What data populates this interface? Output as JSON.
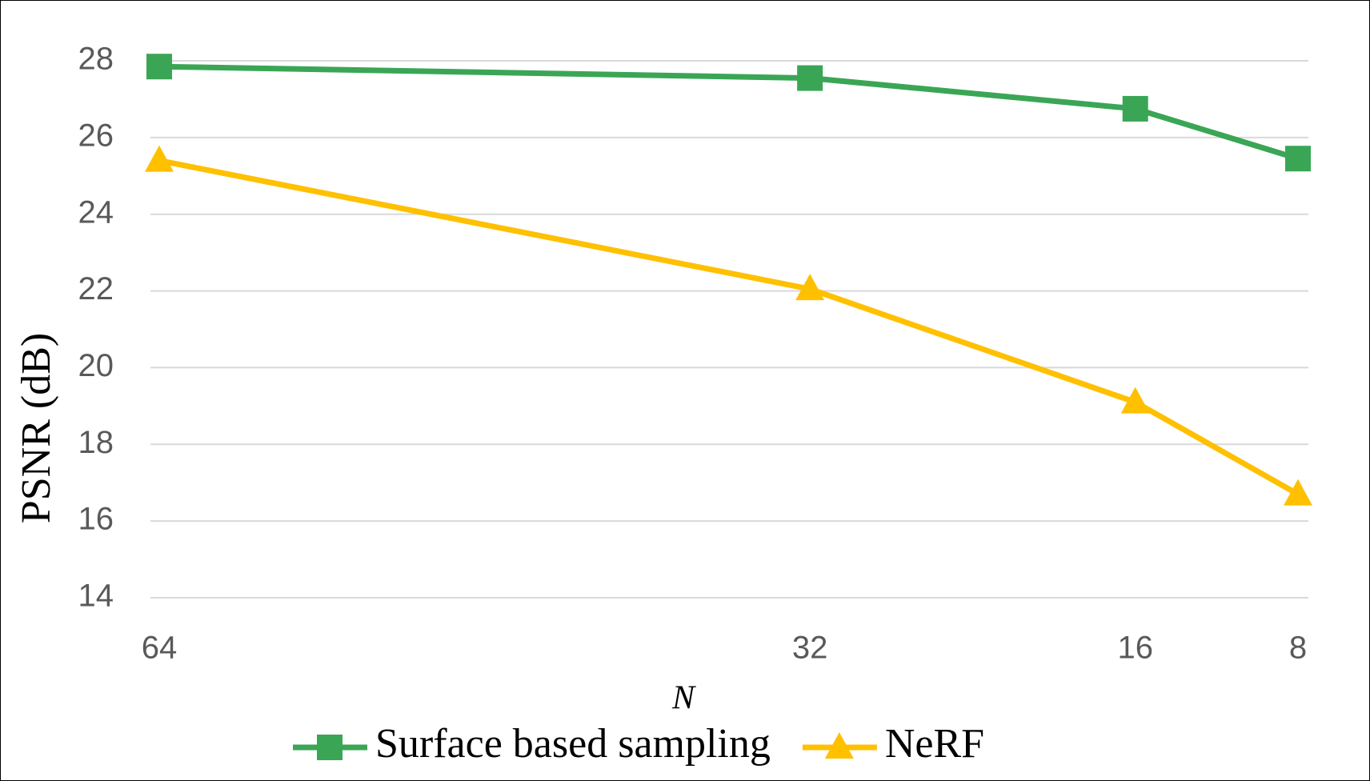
{
  "chart_data": {
    "type": "line",
    "x_label": "N",
    "y_label": "PSNR (dB)",
    "x": [
      64,
      32,
      16,
      8
    ],
    "series": [
      {
        "name": "Surface based sampling",
        "color": "#3aa655",
        "marker": "square",
        "values": [
          27.85,
          27.55,
          26.75,
          25.45
        ]
      },
      {
        "name": "NeRF",
        "color": "#ffc000",
        "marker": "triangle",
        "values": [
          25.4,
          22.05,
          19.1,
          16.7
        ]
      }
    ],
    "xlim": [
      64,
      8
    ],
    "xticks": [
      64,
      32,
      16,
      8
    ],
    "ylim": [
      14,
      28
    ],
    "yticks": [
      14,
      16,
      18,
      20,
      22,
      24,
      26,
      28
    ],
    "grid": true,
    "legend": "bottom"
  }
}
